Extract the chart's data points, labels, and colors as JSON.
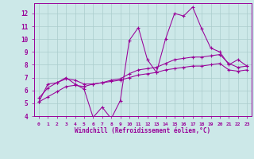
{
  "xlabel": "Windchill (Refroidissement éolien,°C)",
  "bg_color": "#cce8e8",
  "line_color": "#990099",
  "grid_color": "#aacccc",
  "xlim": [
    -0.5,
    23.5
  ],
  "ylim": [
    4,
    12.8
  ],
  "yticks": [
    4,
    5,
    6,
    7,
    8,
    9,
    10,
    11,
    12
  ],
  "xticks": [
    0,
    1,
    2,
    3,
    4,
    5,
    6,
    7,
    8,
    9,
    10,
    11,
    12,
    13,
    14,
    15,
    16,
    17,
    18,
    19,
    20,
    21,
    22,
    23
  ],
  "curve1_x": [
    0,
    1,
    2,
    3,
    4,
    5,
    6,
    7,
    8,
    9,
    10,
    11,
    12,
    13,
    14,
    15,
    16,
    17,
    18,
    19,
    20,
    21,
    22,
    23
  ],
  "curve1_y": [
    5.1,
    6.5,
    6.6,
    7.0,
    6.5,
    6.1,
    3.9,
    4.7,
    3.8,
    5.2,
    9.9,
    10.9,
    8.4,
    7.4,
    10.0,
    12.0,
    11.8,
    12.5,
    10.8,
    9.3,
    9.0,
    8.0,
    8.4,
    7.9
  ],
  "curve2_x": [
    0,
    1,
    2,
    3,
    4,
    5,
    6,
    7,
    8,
    9,
    10,
    11,
    12,
    13,
    14,
    15,
    16,
    17,
    18,
    19,
    20,
    21,
    22,
    23
  ],
  "curve2_y": [
    5.4,
    6.2,
    6.6,
    6.9,
    6.8,
    6.5,
    6.5,
    6.6,
    6.8,
    6.9,
    7.3,
    7.6,
    7.7,
    7.8,
    8.1,
    8.4,
    8.5,
    8.6,
    8.6,
    8.7,
    8.8,
    8.1,
    7.8,
    7.9
  ],
  "curve3_x": [
    0,
    1,
    2,
    3,
    4,
    5,
    6,
    7,
    8,
    9,
    10,
    11,
    12,
    13,
    14,
    15,
    16,
    17,
    18,
    19,
    20,
    21,
    22,
    23
  ],
  "curve3_y": [
    5.1,
    5.5,
    5.9,
    6.3,
    6.4,
    6.3,
    6.5,
    6.6,
    6.7,
    6.8,
    7.0,
    7.2,
    7.3,
    7.4,
    7.6,
    7.7,
    7.8,
    7.9,
    7.9,
    8.0,
    8.1,
    7.6,
    7.5,
    7.6
  ]
}
